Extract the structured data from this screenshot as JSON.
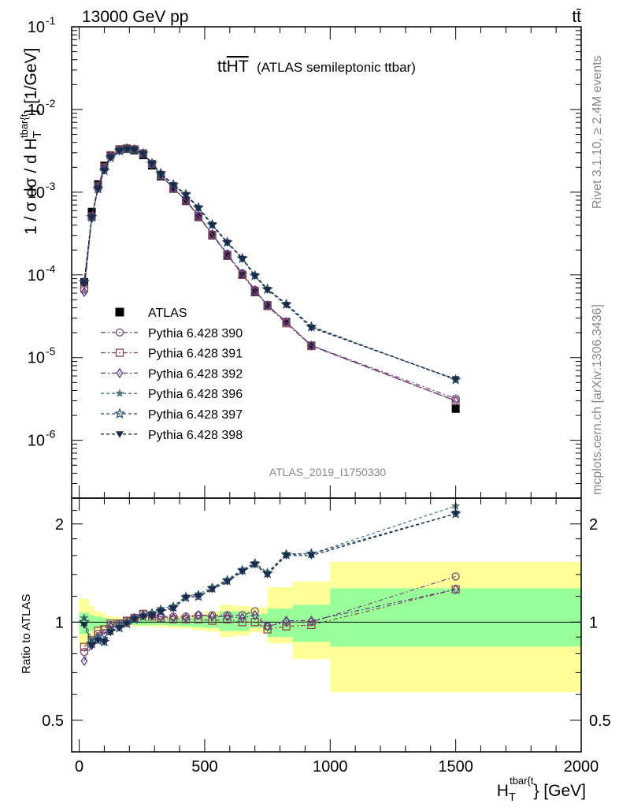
{
  "header": {
    "energy_label": "13000 GeV pp",
    "process_label": "tt̄"
  },
  "side_labels": {
    "rivet": "Rivet 3.1.10, ≥ 2.4M events",
    "mcplots": "mcplots.cern.ch [arXiv:1306.3436]"
  },
  "chart_data": [
    {
      "type": "line",
      "panel": "main",
      "title": "tt",
      "title_overline": "HT",
      "subtitle": "(ATLAS semileptonic ttbar)",
      "analysis_id": "ATLAS_2019_I1750330",
      "ylabel": "1 / σ dσ / d H",
      "ylabel_sub": "T",
      "ylabel_sup": "tbar{t",
      "ylabel_tail": "} [1/GeV]",
      "yscale": "log",
      "ylim": [
        2e-07,
        0.1
      ],
      "xlim": [
        -30,
        2000
      ],
      "y_tick_labels": [
        "10",
        "10",
        "10",
        "10",
        "10",
        "10"
      ],
      "y_tick_exponents": [
        "-6",
        "-5",
        "-4",
        "-3",
        "-2",
        "-1"
      ],
      "legend_placement": "bottom-left",
      "x": [
        20,
        50,
        75,
        100,
        125,
        160,
        190,
        220,
        255,
        290,
        325,
        375,
        425,
        475,
        530,
        590,
        650,
        700,
        750,
        825,
        925,
        1500
      ],
      "series": [
        {
          "name": "ATLAS",
          "color": "#000000",
          "marker": "square-filled",
          "dash": "",
          "values": [
            8.2e-05,
            0.00058,
            0.00125,
            0.0021,
            0.0028,
            0.0033,
            0.00335,
            0.0032,
            0.0028,
            0.0021,
            0.00155,
            0.0011,
            0.00078,
            0.0005,
            0.0003,
            0.00017,
            0.0001,
            6.2e-05,
            4.3e-05,
            2.7e-05,
            1.4e-05,
            2.4e-06
          ]
        },
        {
          "name": "Pythia 6.428 390",
          "color": "#7a4a78",
          "marker": "circle-open",
          "dash": "6,3,2,3",
          "values": [
            6.6e-05,
            0.0005,
            0.00115,
            0.00195,
            0.00275,
            0.00325,
            0.0034,
            0.0033,
            0.00295,
            0.0022,
            0.0016,
            0.00112,
            0.0008,
            0.00052,
            0.00031,
            0.00018,
            0.000105,
            6.6e-05,
            4.3e-05,
            2.7e-05,
            1.4e-05,
            3.2e-06
          ]
        },
        {
          "name": "Pythia 6.428 391",
          "color": "#8a4a50",
          "marker": "square-open",
          "dash": "6,3,2,3",
          "values": [
            6.9e-05,
            0.00051,
            0.00118,
            0.002,
            0.0028,
            0.00325,
            0.00338,
            0.0033,
            0.00295,
            0.0022,
            0.0016,
            0.00112,
            0.00079,
            0.00051,
            0.000305,
            0.000175,
            0.0001,
            6.4e-05,
            4.2e-05,
            2.6e-05,
            1.38e-05,
            3e-06
          ]
        },
        {
          "name": "Pythia 6.428 392",
          "color": "#5a3a8a",
          "marker": "diamond-open",
          "dash": "6,3,2,3",
          "values": [
            6.2e-05,
            0.00049,
            0.00112,
            0.00192,
            0.00272,
            0.0032,
            0.00338,
            0.00328,
            0.00293,
            0.00219,
            0.0016,
            0.00112,
            0.0008,
            0.00052,
            0.00031,
            0.000178,
            0.000103,
            6.5e-05,
            4.3e-05,
            2.7e-05,
            1.4e-05,
            3e-06
          ]
        },
        {
          "name": "Pythia 6.428 396",
          "color": "#4a7a7a",
          "marker": "star-filled",
          "dash": "4,3",
          "values": [
            8.4e-05,
            0.00051,
            0.00112,
            0.00185,
            0.00265,
            0.0032,
            0.00335,
            0.0033,
            0.00295,
            0.00225,
            0.0017,
            0.00125,
            0.00095,
            0.00066,
            0.00041,
            0.00025,
            0.00016,
            0.0001,
            6.8e-05,
            4.5e-05,
            2.4e-05,
            5.4e-06
          ]
        },
        {
          "name": "Pythia 6.428 397",
          "color": "#2a4a6a",
          "marker": "star-open",
          "dash": "4,3",
          "values": [
            8.2e-05,
            0.0005,
            0.0011,
            0.00183,
            0.00263,
            0.00318,
            0.00333,
            0.00328,
            0.00293,
            0.00222,
            0.00168,
            0.00123,
            0.00094,
            0.00065,
            0.000405,
            0.000248,
            0.000158,
            9.8e-05,
            6.7e-05,
            4.4e-05,
            2.35e-05,
            5.4e-06
          ]
        },
        {
          "name": "Pythia 6.428 398",
          "color": "#1a2a4a",
          "marker": "triangle-down-filled",
          "dash": "4,3",
          "values": [
            8e-05,
            0.000495,
            0.0011,
            0.00182,
            0.00262,
            0.00316,
            0.00332,
            0.00327,
            0.00292,
            0.00221,
            0.00167,
            0.00122,
            0.00093,
            0.00064,
            0.0004,
            0.000245,
            0.000156,
            9.7e-05,
            6.6e-05,
            4.35e-05,
            2.3e-05,
            5.5e-06
          ]
        }
      ]
    },
    {
      "type": "line",
      "panel": "ratio",
      "ylabel": "Ratio to ATLAS",
      "xlabel": "H",
      "xlabel_sub": "T",
      "xlabel_sup": "tbar{t",
      "xlabel_tail": "} [GeV]",
      "yscale": "log",
      "ylim": [
        0.4,
        2.4
      ],
      "xlim": [
        -30,
        2000
      ],
      "y_ticks": [
        0.5,
        1,
        2
      ],
      "y_tick_labels": [
        "0.5",
        "1",
        "2"
      ],
      "x_ticks": [
        0,
        500,
        1000,
        1500,
        2000
      ],
      "x_tick_labels": [
        "0",
        "500",
        "1000",
        "1500",
        "2000"
      ],
      "bands": {
        "green_color": "#99ff99",
        "yellow_color": "#ffff99",
        "bins": [
          {
            "x0": 0,
            "x1": 40,
            "green": [
              0.92,
              1.07
            ],
            "yellow": [
              0.85,
              1.18
            ]
          },
          {
            "x0": 40,
            "x1": 60,
            "green": [
              0.94,
              1.05
            ],
            "yellow": [
              0.9,
              1.12
            ]
          },
          {
            "x0": 60,
            "x1": 90,
            "green": [
              0.96,
              1.04
            ],
            "yellow": [
              0.93,
              1.08
            ]
          },
          {
            "x0": 90,
            "x1": 110,
            "green": [
              0.97,
              1.03
            ],
            "yellow": [
              0.95,
              1.06
            ]
          },
          {
            "x0": 110,
            "x1": 140,
            "green": [
              0.98,
              1.02
            ],
            "yellow": [
              0.96,
              1.04
            ]
          },
          {
            "x0": 140,
            "x1": 300,
            "green": [
              0.98,
              1.02
            ],
            "yellow": [
              0.97,
              1.035
            ]
          },
          {
            "x0": 300,
            "x1": 350,
            "green": [
              0.98,
              1.02
            ],
            "yellow": [
              0.965,
              1.035
            ]
          },
          {
            "x0": 350,
            "x1": 400,
            "green": [
              0.975,
              1.025
            ],
            "yellow": [
              0.96,
              1.045
            ]
          },
          {
            "x0": 400,
            "x1": 450,
            "green": [
              0.97,
              1.03
            ],
            "yellow": [
              0.955,
              1.05
            ]
          },
          {
            "x0": 450,
            "x1": 500,
            "green": [
              0.965,
              1.035
            ],
            "yellow": [
              0.945,
              1.06
            ]
          },
          {
            "x0": 500,
            "x1": 560,
            "green": [
              0.96,
              1.05
            ],
            "yellow": [
              0.935,
              1.08
            ]
          },
          {
            "x0": 560,
            "x1": 620,
            "green": [
              0.94,
              1.08
            ],
            "yellow": [
              0.9,
              1.13
            ]
          },
          {
            "x0": 620,
            "x1": 680,
            "green": [
              0.94,
              1.08
            ],
            "yellow": [
              0.91,
              1.12
            ]
          },
          {
            "x0": 680,
            "x1": 750,
            "green": [
              0.96,
              1.06
            ],
            "yellow": [
              0.93,
              1.11
            ]
          },
          {
            "x0": 750,
            "x1": 850,
            "green": [
              0.9,
              1.1
            ],
            "yellow": [
              0.86,
              1.28
            ]
          },
          {
            "x0": 850,
            "x1": 1000,
            "green": [
              0.87,
              1.13
            ],
            "yellow": [
              0.77,
              1.33
            ]
          },
          {
            "x0": 1000,
            "x1": 2000,
            "green": [
              0.84,
              1.27
            ],
            "yellow": [
              0.61,
              1.53
            ]
          }
        ]
      },
      "x": [
        20,
        50,
        75,
        100,
        125,
        160,
        190,
        220,
        255,
        290,
        325,
        375,
        425,
        475,
        530,
        590,
        650,
        700,
        750,
        825,
        925,
        1500
      ],
      "series": [
        {
          "name": "Pythia 6.428 390",
          "color": "#7a4a78",
          "marker": "circle-open",
          "dash": "6,3,2,3",
          "values": [
            0.81,
            0.87,
            0.92,
            0.95,
            0.98,
            0.99,
            1.01,
            1.03,
            1.06,
            1.05,
            1.04,
            1.04,
            1.04,
            1.05,
            1.05,
            1.05,
            1.05,
            1.08,
            0.97,
            1.0,
            1.0,
            1.38
          ]
        },
        {
          "name": "Pythia 6.428 391",
          "color": "#8a4a50",
          "marker": "square-open",
          "dash": "6,3,2,3",
          "values": [
            0.84,
            0.88,
            0.94,
            0.95,
            0.99,
            0.99,
            1.01,
            1.03,
            1.06,
            1.04,
            1.03,
            1.02,
            1.02,
            1.02,
            1.01,
            1.02,
            1.0,
            1.0,
            0.95,
            0.97,
            0.98,
            1.26
          ]
        },
        {
          "name": "Pythia 6.428 392",
          "color": "#5a3a8a",
          "marker": "diamond-open",
          "dash": "6,3,2,3",
          "values": [
            0.76,
            0.85,
            0.9,
            0.92,
            0.97,
            0.98,
            1.0,
            1.03,
            1.05,
            1.05,
            1.04,
            1.03,
            1.03,
            1.05,
            1.04,
            1.04,
            1.03,
            1.05,
            0.97,
            1.01,
            1.01,
            1.26
          ]
        },
        {
          "name": "Pythia 6.428 396",
          "color": "#4a7a7a",
          "marker": "star-filled",
          "dash": "4,3",
          "values": [
            1.03,
            0.88,
            0.9,
            0.88,
            0.95,
            0.97,
            1.0,
            1.03,
            1.05,
            1.07,
            1.1,
            1.12,
            1.2,
            1.22,
            1.28,
            1.35,
            1.45,
            1.52,
            1.42,
            1.62,
            1.62,
            2.27
          ]
        },
        {
          "name": "Pythia 6.428 397",
          "color": "#2a4a6a",
          "marker": "star-open",
          "dash": "4,3",
          "values": [
            1.0,
            0.86,
            0.88,
            0.87,
            0.94,
            0.96,
            0.99,
            1.02,
            1.04,
            1.06,
            1.08,
            1.11,
            1.19,
            1.2,
            1.27,
            1.34,
            1.44,
            1.51,
            1.41,
            1.61,
            1.62,
            2.15
          ]
        },
        {
          "name": "Pythia 6.428 398",
          "color": "#1a2a4a",
          "marker": "triangle-down-filled",
          "dash": "4,3",
          "values": [
            0.98,
            0.85,
            0.88,
            0.87,
            0.93,
            0.96,
            0.99,
            1.02,
            1.04,
            1.05,
            1.08,
            1.1,
            1.19,
            1.2,
            1.26,
            1.33,
            1.43,
            1.5,
            1.4,
            1.6,
            1.6,
            2.15
          ]
        }
      ]
    }
  ]
}
